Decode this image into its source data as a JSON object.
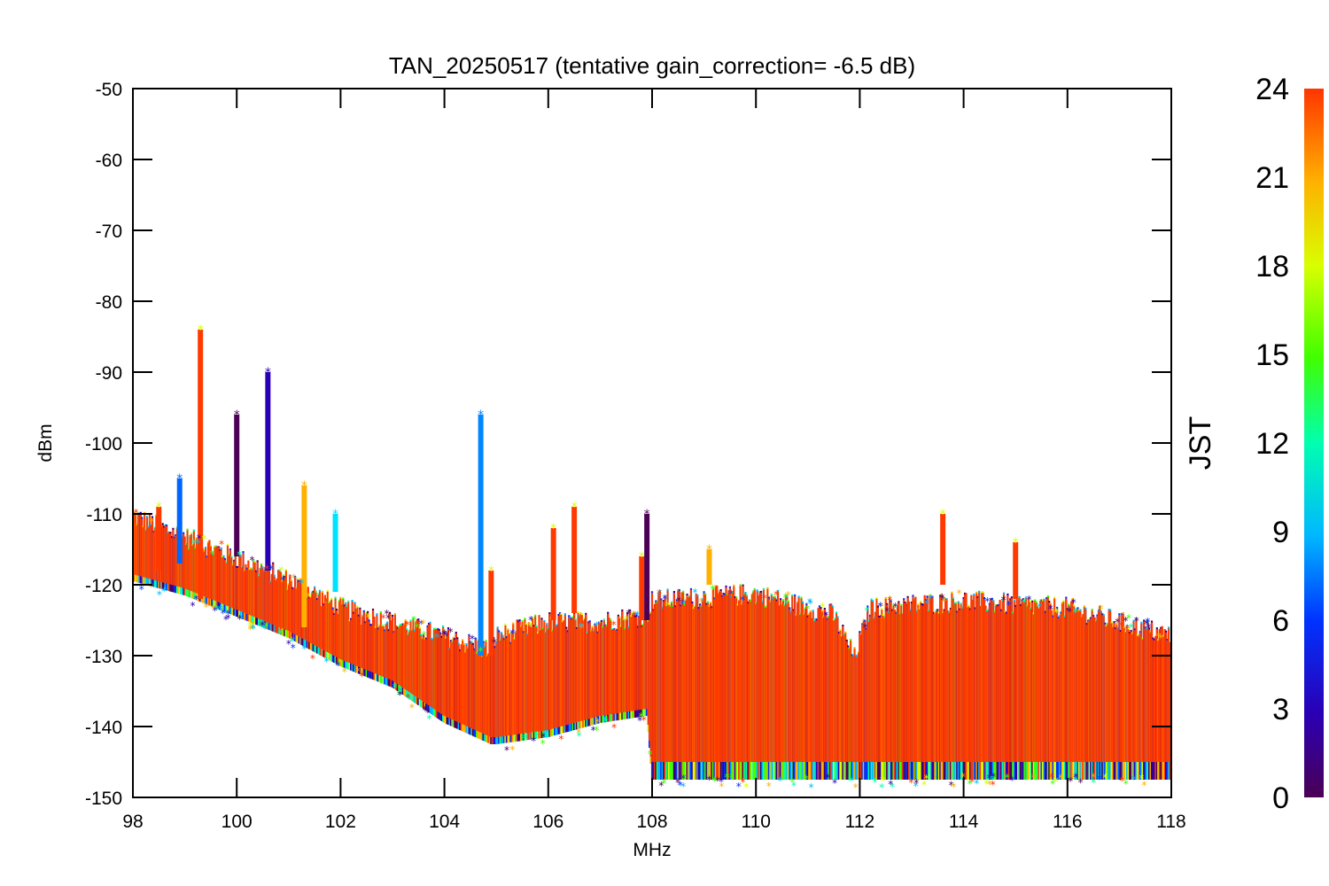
{
  "chart_data": {
    "type": "scatter",
    "title": "TAN_20250517 (tentative gain_correction= -6.5 dB)",
    "xlabel": "MHz",
    "ylabel": "dBm",
    "xlim": [
      98,
      118
    ],
    "ylim": [
      -150,
      -50
    ],
    "x_ticks": [
      98,
      100,
      102,
      104,
      106,
      108,
      110,
      112,
      114,
      116,
      118
    ],
    "x_tick_labels": [
      "98",
      "100",
      "102",
      "104",
      "106",
      "108",
      "110",
      "112",
      "114",
      "116",
      "118"
    ],
    "y_ticks": [
      -150,
      -140,
      -130,
      -120,
      -110,
      -100,
      -90,
      -80,
      -70,
      -60,
      -50
    ],
    "y_tick_labels": [
      "-150",
      "-140",
      "-130",
      "-120",
      "-110",
      "-100",
      "-90",
      "-80",
      "-70",
      "-60",
      "-50"
    ],
    "grid": false,
    "marker": "asterisk",
    "colorbar": {
      "label": "JST",
      "range": [
        0,
        24
      ],
      "ticks": [
        0,
        3,
        6,
        9,
        12,
        15,
        18,
        21,
        24
      ],
      "tick_labels": [
        "0",
        "3",
        "6",
        "9",
        "12",
        "15",
        "18",
        "21",
        "24"
      ],
      "colormap": "rainbow",
      "colors": [
        "#4b0055",
        "#2a00b5",
        "#0033ff",
        "#00b8ff",
        "#00ffb0",
        "#40ff00",
        "#d8ff00",
        "#ffb000",
        "#ff3500"
      ]
    },
    "dominant_color": "#ff3a00",
    "noise_floor": [
      {
        "x": 98.0,
        "low": -119,
        "high": -111
      },
      {
        "x": 99.0,
        "low": -121,
        "high": -114
      },
      {
        "x": 100.0,
        "low": -124,
        "high": -117
      },
      {
        "x": 101.0,
        "low": -127,
        "high": -120
      },
      {
        "x": 102.0,
        "low": -131,
        "high": -124
      },
      {
        "x": 103.0,
        "low": -134,
        "high": -126
      },
      {
        "x": 104.0,
        "low": -139,
        "high": -128
      },
      {
        "x": 104.9,
        "low": -142,
        "high": -130
      },
      {
        "x": 105.0,
        "low": -142,
        "high": -128
      },
      {
        "x": 106.0,
        "low": -141,
        "high": -126
      },
      {
        "x": 107.0,
        "low": -139,
        "high": -126
      },
      {
        "x": 107.9,
        "low": -138,
        "high": -125
      },
      {
        "x": 108.0,
        "low": -147,
        "high": -123
      },
      {
        "x": 110.0,
        "low": -147,
        "high": -122
      },
      {
        "x": 111.5,
        "low": -147,
        "high": -125
      },
      {
        "x": 111.9,
        "low": -147,
        "high": -131
      },
      {
        "x": 112.2,
        "low": -147,
        "high": -124
      },
      {
        "x": 114.0,
        "low": -147,
        "high": -123
      },
      {
        "x": 116.0,
        "low": -147,
        "high": -124
      },
      {
        "x": 117.0,
        "low": -147,
        "high": -126
      },
      {
        "x": 118.0,
        "low": -147,
        "high": -128
      }
    ],
    "signals": [
      {
        "x": 98.5,
        "min": -118,
        "max": -109,
        "color": "#ff3a00"
      },
      {
        "x": 98.9,
        "min": -117,
        "max": -105,
        "color": "#0066ff"
      },
      {
        "x": 99.3,
        "min": -122,
        "max": -84,
        "color": "#ff3a00"
      },
      {
        "x": 100.0,
        "min": -116,
        "max": -96,
        "color": "#4b0055"
      },
      {
        "x": 100.6,
        "min": -118,
        "max": -90,
        "color": "#2a00b5"
      },
      {
        "x": 101.3,
        "min": -126,
        "max": -106,
        "color": "#ffb000"
      },
      {
        "x": 101.9,
        "min": -121,
        "max": -110,
        "color": "#00e0ff"
      },
      {
        "x": 104.7,
        "min": -130,
        "max": -96,
        "color": "#0088ff"
      },
      {
        "x": 104.9,
        "min": -130,
        "max": -118,
        "color": "#ff3a00"
      },
      {
        "x": 106.1,
        "min": -125,
        "max": -112,
        "color": "#ff3a00"
      },
      {
        "x": 106.5,
        "min": -124,
        "max": -109,
        "color": "#ff3a00"
      },
      {
        "x": 107.8,
        "min": -125,
        "max": -116,
        "color": "#ff3a00"
      },
      {
        "x": 107.9,
        "min": -125,
        "max": -110,
        "color": "#4b0055"
      },
      {
        "x": 109.1,
        "min": -120,
        "max": -115,
        "color": "#ffb000"
      },
      {
        "x": 113.6,
        "min": -120,
        "max": -110,
        "color": "#ff3a00"
      },
      {
        "x": 115.0,
        "min": -122,
        "max": -114,
        "color": "#ff3a00"
      }
    ]
  }
}
